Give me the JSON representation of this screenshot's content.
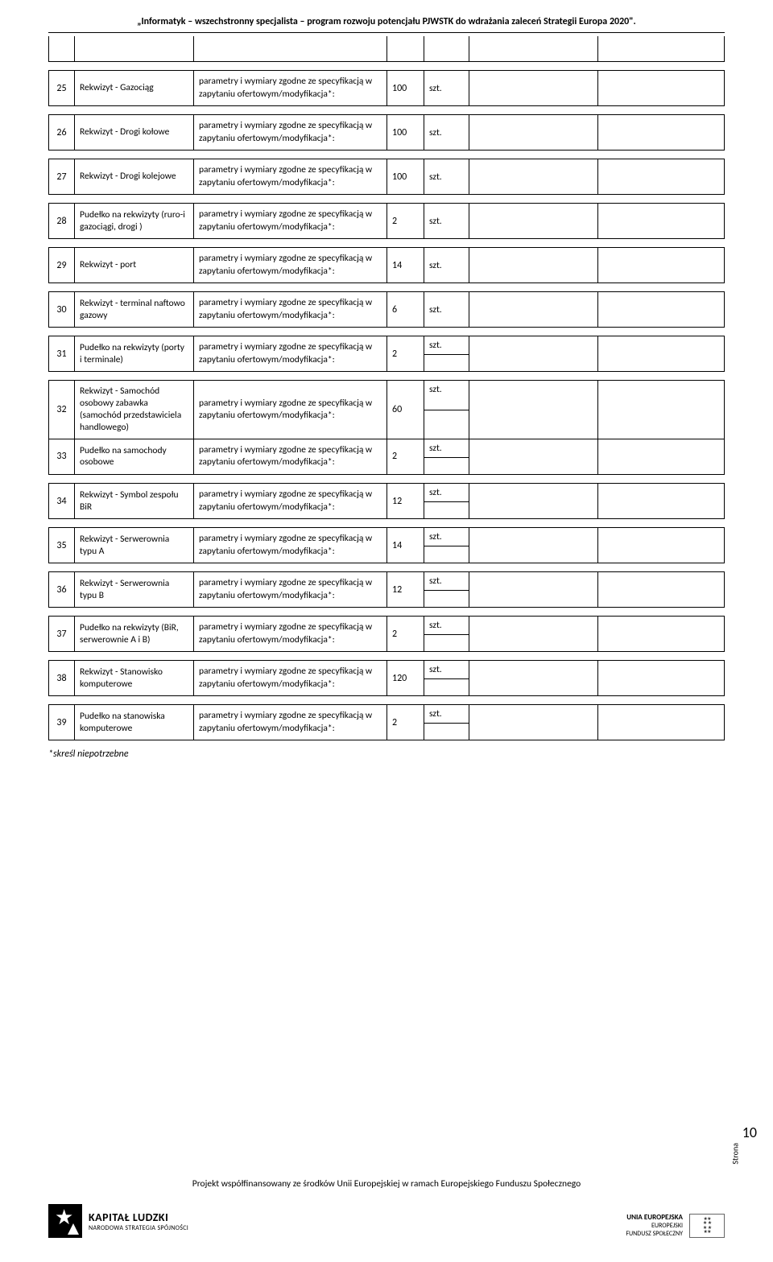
{
  "header": {
    "title": "„Informatyk – wszechstronny specjalista – program rozwoju potencjału PJWSTK do wdrażania zaleceń Strategii  Europa 2020\"."
  },
  "common": {
    "desc_line": "parametry i wymiary zgodne ze specyfikacją w zapytaniu ofertowym/modyfikacja*:",
    "unit": "szt."
  },
  "rows": [
    {
      "num": "25",
      "name": "Rekwizyt - Gazociąg",
      "qty": "100"
    },
    {
      "num": "26",
      "name": "Rekwizyt - Drogi kołowe",
      "qty": "100"
    },
    {
      "num": "27",
      "name": "Rekwizyt - Drogi kolejowe",
      "qty": "100"
    },
    {
      "num": "28",
      "name": "Pudełko na rekwizyty (ruro-i gazociągi, drogi )",
      "qty": "2"
    },
    {
      "num": "29",
      "name": "Rekwizyt  - port",
      "qty": "14"
    },
    {
      "num": "30",
      "name": "Rekwizyt - terminal naftowo gazowy",
      "qty": "6"
    },
    {
      "num": "31",
      "name": "Pudełko na rekwizyty (porty i terminale)",
      "qty": "2",
      "split": true
    },
    {
      "num": "32",
      "name": "Rekwizyt - Samochód osobowy zabawka (samochód przedstawiciela handlowego)",
      "qty": "60",
      "split": true,
      "grouped": "top"
    },
    {
      "num": "33",
      "name": "Pudełko na samochody osobowe",
      "qty": "2",
      "split": true,
      "grouped": "bottom"
    },
    {
      "num": "34",
      "name": "Rekwizyt - Symbol zespołu BiR",
      "qty": "12",
      "split": true
    },
    {
      "num": "35",
      "name": "Rekwizyt - Serwerownia typu A",
      "qty": "14",
      "split": true
    },
    {
      "num": "36",
      "name": "Rekwizyt - Serwerownia typu B",
      "qty": "12",
      "split": true
    },
    {
      "num": "37",
      "name": "Pudełko na rekwizyty (BiR, serwerownie A i B)",
      "qty": "2",
      "split": true
    },
    {
      "num": "38",
      "name": "Rekwizyt - Stanowisko komputerowe",
      "qty": "120",
      "split": true
    },
    {
      "num": "39",
      "name": "Pudełko na stanowiska komputerowe",
      "qty": "2",
      "split": true
    }
  ],
  "footnote": "*skreśl niepotrzebne",
  "footer": {
    "text": "Projekt współfinansowany ze środków Unii Europejskiej w ramach Europejskiego Funduszu Społecznego",
    "logo_left_line1": "KAPITAŁ LUDZKI",
    "logo_left_line2": "NARODOWA STRATEGIA SPÓJNOŚCI",
    "logo_right_line1": "UNIA EUROPEJSKA",
    "logo_right_line2": "EUROPEJSKI",
    "logo_right_line3": "FUNDUSZ SPOŁECZNY"
  },
  "page_label": "Strona",
  "page_num": "10"
}
